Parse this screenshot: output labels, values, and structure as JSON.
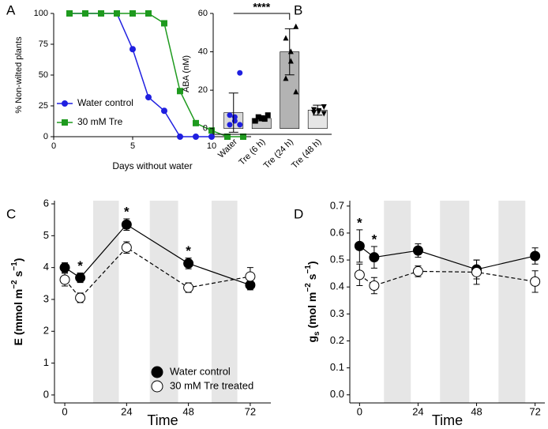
{
  "chart_data": [
    {
      "type": "line",
      "label": "A",
      "xlabel": "Days without water",
      "ylabel": "% Non-wilted plants",
      "x": [
        1,
        2,
        3,
        4,
        5,
        6,
        7,
        8,
        9,
        10,
        11,
        12
      ],
      "xlim": [
        0,
        12.5
      ],
      "xticks": [
        0,
        5,
        10
      ],
      "ylim": [
        0,
        100
      ],
      "yticks": [
        0,
        25,
        50,
        75,
        100
      ],
      "legend": "lower left",
      "series": [
        {
          "name": "Water control",
          "color": "#1f1fe0",
          "marker": "circle",
          "values": [
            100,
            100,
            100,
            100,
            71,
            32,
            21,
            0,
            0,
            0,
            null,
            null
          ]
        },
        {
          "name": "30 mM Tre",
          "color": "#1e9a1e",
          "marker": "square",
          "values": [
            100,
            100,
            100,
            100,
            100,
            100,
            92,
            37,
            11,
            5,
            0,
            0
          ]
        }
      ]
    },
    {
      "type": "bar",
      "label": "B",
      "ylabel": "ABA (nM)",
      "categories": [
        "Water",
        "Tre (6 h)",
        "Tre (24 h)",
        "Tre (48 h)"
      ],
      "values": [
        8.3,
        5.3,
        40,
        9.6
      ],
      "errors": [
        10.2,
        1.3,
        12,
        2.6
      ],
      "colors": [
        "#d9d9d9",
        "#c8c8c8",
        "#b3b3b3",
        "#e6e6e6"
      ],
      "points": [
        [
          29,
          7,
          6,
          4,
          2,
          2
        ],
        [
          7,
          6,
          5.5,
          5,
          4
        ],
        [
          53,
          47,
          40,
          35,
          26,
          19
        ],
        [
          11.5,
          10,
          9.5,
          9,
          8.5,
          8
        ]
      ],
      "point_colors": [
        "#1f1fe0",
        "#000000",
        "#000000",
        "#000000"
      ],
      "markers": [
        "circle",
        "square",
        "triangle",
        "triangle-down"
      ],
      "ylim": [
        -3,
        60
      ],
      "yticks": [
        0,
        20,
        40,
        60
      ],
      "significance": {
        "label": "****",
        "from": 0,
        "to": 2
      }
    },
    {
      "type": "line",
      "label": "C",
      "xlabel": "Time",
      "ylabel": [
        {
          "text": "E (mmol m"
        },
        {
          "text": "−2",
          "shift": "super"
        },
        {
          "text": " s"
        },
        {
          "text": "−1",
          "shift": "super"
        },
        {
          "text": ")"
        }
      ],
      "x": [
        0,
        6,
        24,
        48,
        72
      ],
      "xlim": [
        -4,
        80
      ],
      "xticks": [
        0,
        24,
        48,
        72
      ],
      "ylim": [
        -0.25,
        6.1
      ],
      "yticks": [
        0,
        1,
        2,
        3,
        4,
        5,
        6
      ],
      "legend": "lower right",
      "shaded_regions": [
        [
          11,
          21
        ],
        [
          33,
          44
        ],
        [
          57,
          67
        ]
      ],
      "series": [
        {
          "name": "Water control",
          "color": "#000000",
          "fill": "#000000",
          "dash": false,
          "marker": "circle",
          "values": [
            4.0,
            3.68,
            5.35,
            4.13,
            3.45
          ],
          "errors": [
            0.15,
            0.15,
            0.18,
            0.17,
            0.15
          ]
        },
        {
          "name": "30 mM Tre treated",
          "color": "#000000",
          "fill": "#ffffff",
          "dash": true,
          "marker": "circle",
          "values": [
            3.62,
            3.05,
            4.63,
            3.37,
            3.72
          ],
          "errors": [
            0.2,
            0.15,
            0.18,
            0.15,
            0.28
          ]
        }
      ],
      "significance": [
        {
          "label": "*",
          "index": 1
        },
        {
          "label": "*",
          "index": 2
        },
        {
          "label": "*",
          "index": 3
        }
      ]
    },
    {
      "type": "line",
      "label": "D",
      "xlabel": "Time",
      "ylabel": [
        {
          "text": "g"
        },
        {
          "text": "s",
          "shift": "sub"
        },
        {
          "text": " (mol m"
        },
        {
          "text": "−2",
          "shift": "super"
        },
        {
          "text": " s"
        },
        {
          "text": "−1",
          "shift": "super"
        },
        {
          "text": ")"
        }
      ],
      "x": [
        0,
        6,
        24,
        48,
        72
      ],
      "xlim": [
        -4,
        76
      ],
      "xticks": [
        0,
        24,
        48,
        72
      ],
      "ylim": [
        -0.03,
        0.72
      ],
      "yticks": [
        {
          "value": 0,
          "label": "0.0"
        },
        0.1,
        0.2,
        0.3,
        0.4,
        0.5,
        0.6,
        0.7
      ],
      "shaded_regions": [
        [
          10,
          21
        ],
        [
          33,
          45
        ],
        [
          57,
          68
        ]
      ],
      "series": [
        {
          "name": "Water control",
          "color": "#000000",
          "fill": "#000000",
          "dash": false,
          "marker": "circle",
          "values": [
            0.552,
            0.51,
            0.535,
            0.465,
            0.515
          ],
          "errors": [
            0.06,
            0.04,
            0.025,
            0.035,
            0.03
          ]
        },
        {
          "name": "30 mM Tre treated",
          "color": "#000000",
          "fill": "#ffffff",
          "dash": true,
          "marker": "circle",
          "values": [
            0.445,
            0.405,
            0.458,
            0.455,
            0.42
          ],
          "errors": [
            0.04,
            0.03,
            0.02,
            0.045,
            0.04
          ]
        }
      ],
      "significance": [
        {
          "label": "*",
          "index": 0
        },
        {
          "label": "*",
          "index": 1
        }
      ]
    }
  ]
}
